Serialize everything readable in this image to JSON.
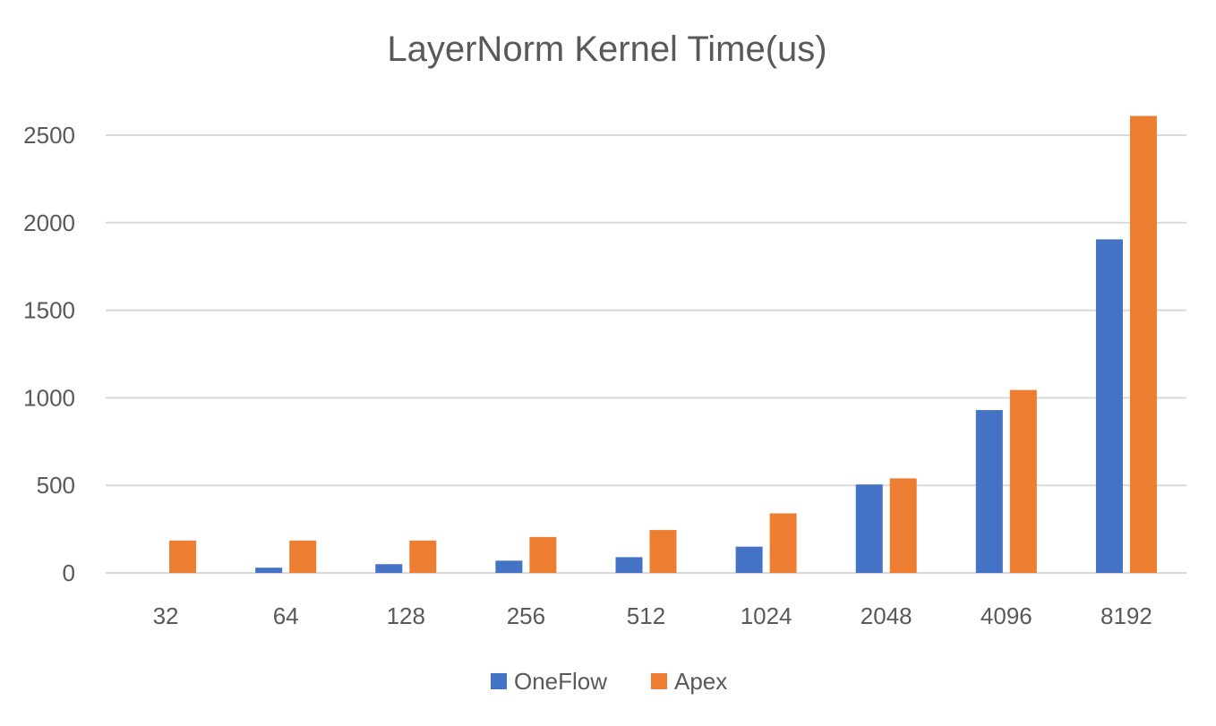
{
  "chart_data": {
    "type": "bar",
    "title": "LayerNorm Kernel Time(us)",
    "xlabel": "",
    "ylabel": "",
    "categories": [
      "32",
      "64",
      "128",
      "256",
      "512",
      "1024",
      "2048",
      "4096",
      "8192"
    ],
    "series": [
      {
        "name": "OneFlow",
        "color": "#4472c4",
        "values": [
          0,
          30,
          50,
          70,
          90,
          150,
          505,
          930,
          1905
        ]
      },
      {
        "name": "Apex",
        "color": "#ed7d31",
        "values": [
          185,
          185,
          185,
          205,
          245,
          340,
          540,
          1045,
          2610
        ]
      }
    ],
    "ylim": [
      0,
      2600
    ],
    "yticks": [
      0,
      500,
      1000,
      1500,
      2000,
      2500
    ],
    "grid": true,
    "legend_position": "bottom-center"
  }
}
